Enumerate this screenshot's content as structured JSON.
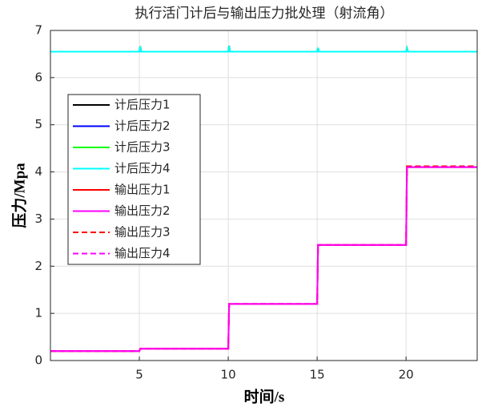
{
  "chart_data": {
    "type": "line",
    "title": "执行活门计后与输出压力批处理（射流角）",
    "x_label": "时间/s",
    "y_label": "压力/Mpa",
    "x": [
      0,
      5,
      5.05,
      5.1,
      10,
      10.05,
      10.1,
      15,
      15.05,
      15.1,
      20,
      20.05,
      20.1,
      24
    ],
    "series": [
      {
        "name": "计后压力1",
        "color": "#000000",
        "linestyle": "-",
        "values": [
          6.55,
          6.55,
          6.66,
          6.55,
          6.55,
          6.67,
          6.55,
          6.55,
          6.63,
          6.55,
          6.55,
          6.62,
          6.55,
          6.55
        ]
      },
      {
        "name": "计后压力2",
        "color": "#0000ff",
        "linestyle": "-",
        "values": [
          6.55,
          6.55,
          6.66,
          6.55,
          6.55,
          6.67,
          6.55,
          6.55,
          6.63,
          6.55,
          6.55,
          6.62,
          6.55,
          6.55
        ]
      },
      {
        "name": "计后压力3",
        "color": "#00ff00",
        "linestyle": "-",
        "values": [
          6.55,
          6.55,
          6.66,
          6.55,
          6.55,
          6.67,
          6.55,
          6.55,
          6.63,
          6.55,
          6.55,
          6.62,
          6.55,
          6.55
        ]
      },
      {
        "name": "计后压力4",
        "color": "#00ffff",
        "linestyle": "-",
        "values": [
          6.55,
          6.55,
          6.66,
          6.55,
          6.55,
          6.67,
          6.55,
          6.55,
          6.63,
          6.55,
          6.55,
          6.62,
          6.55,
          6.55
        ]
      },
      {
        "name": "输出压力1",
        "color": "#ff0000",
        "linestyle": "-",
        "values": [
          0.2,
          0.2,
          0.25,
          0.25,
          0.25,
          1.2,
          1.2,
          1.2,
          2.45,
          2.45,
          2.45,
          4.1,
          4.1,
          4.1
        ]
      },
      {
        "name": "输出压力2",
        "color": "#ff00ff",
        "linestyle": "-",
        "values": [
          0.2,
          0.2,
          0.25,
          0.25,
          0.25,
          1.2,
          1.2,
          1.2,
          2.45,
          2.45,
          2.45,
          4.1,
          4.1,
          4.1
        ]
      },
      {
        "name": "输出压力3",
        "color": "#ff0000",
        "linestyle": "--",
        "values": [
          0.2,
          0.2,
          0.25,
          0.25,
          0.25,
          1.2,
          1.2,
          1.2,
          2.45,
          2.45,
          2.45,
          4.12,
          4.12,
          4.12
        ]
      },
      {
        "name": "输出压力4",
        "color": "#ff00ff",
        "linestyle": "--",
        "values": [
          0.2,
          0.2,
          0.25,
          0.25,
          0.25,
          1.2,
          1.2,
          1.2,
          2.45,
          2.45,
          2.45,
          4.1,
          4.1,
          4.1
        ]
      }
    ],
    "xlim": [
      0,
      24
    ],
    "xticks": [
      5,
      10,
      15,
      20
    ],
    "ylim": [
      0,
      7
    ],
    "yticks": [
      0,
      1,
      2,
      3,
      4,
      5,
      6,
      7
    ],
    "grid": true,
    "legend_location": "west"
  }
}
